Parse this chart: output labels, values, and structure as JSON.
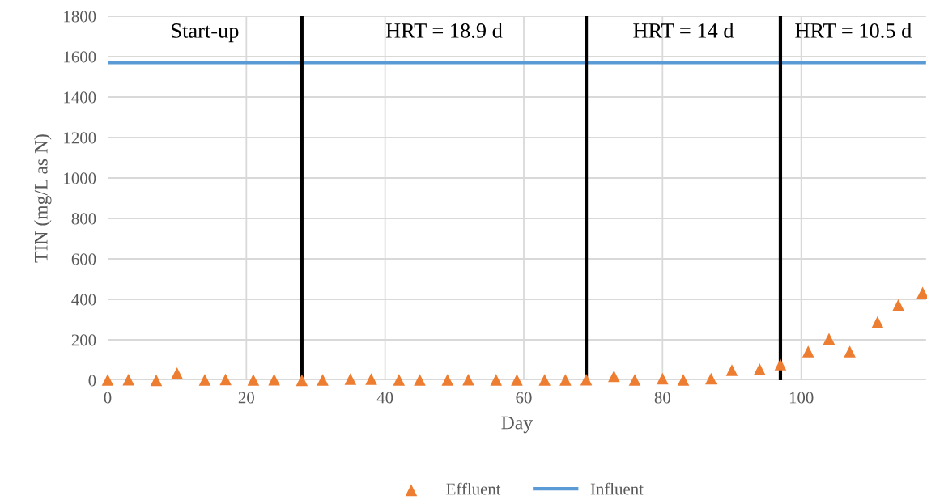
{
  "chart_data": {
    "type": "scatter",
    "xlabel": "Day",
    "ylabel": "TIN (mg/L as N)",
    "xlim": [
      0,
      118
    ],
    "xticks": [
      0,
      20,
      40,
      60,
      80,
      100
    ],
    "ylim": [
      0,
      1800
    ],
    "yticks": [
      0,
      200,
      400,
      600,
      800,
      1000,
      1200,
      1400,
      1600,
      1800
    ],
    "grid": true,
    "legend": "bottom",
    "series": [
      {
        "name": "Effluent",
        "marker": "triangle",
        "color": "#ed7d31",
        "x": [
          0,
          3,
          7,
          10,
          14,
          17,
          21,
          24,
          28,
          31,
          35,
          38,
          42,
          45,
          49,
          52,
          56,
          59,
          63,
          66,
          69,
          73,
          76,
          80,
          83,
          87,
          90,
          94,
          97,
          101,
          104,
          107,
          111,
          114,
          117.5
        ],
        "values": [
          2,
          3,
          0,
          35,
          2,
          4,
          2,
          3,
          0,
          2,
          6,
          6,
          2,
          2,
          2,
          3,
          2,
          2,
          2,
          2,
          3,
          20,
          2,
          8,
          2,
          8,
          50,
          55,
          78,
          142,
          205,
          142,
          288,
          372,
          433
        ]
      },
      {
        "name": "Influent",
        "type": "line",
        "marker": "none",
        "color": "#5b9bd5",
        "x": [
          0,
          118
        ],
        "values": [
          1570,
          1570
        ]
      }
    ],
    "ref_lines": [
      {
        "axis": "x",
        "value": 28,
        "color": "#000000"
      },
      {
        "axis": "x",
        "value": 69,
        "color": "#000000"
      },
      {
        "axis": "x",
        "value": 97,
        "color": "#000000"
      }
    ],
    "annotations": [
      "Start-up",
      "HRT = 18.9 d",
      "HRT = 14 d",
      "HRT = 10.5 d"
    ]
  }
}
